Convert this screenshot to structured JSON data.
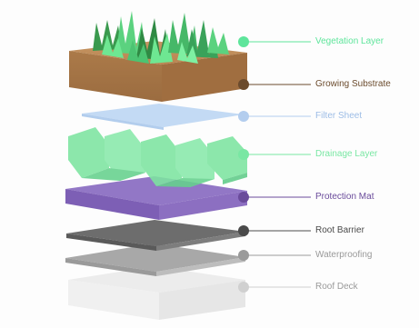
{
  "layers": [
    {
      "key": "vegetation",
      "label": "Vegetation Layer",
      "color": "#5ee59b"
    },
    {
      "key": "substrate",
      "label": "Growing Substrate",
      "color": "#6b4b2d"
    },
    {
      "key": "filter",
      "label": "Filter Sheet",
      "color": "#9dbde6"
    },
    {
      "key": "drainage",
      "label": "Drainage Layer",
      "color": "#79e7a3"
    },
    {
      "key": "protection",
      "label": "Protection Mat",
      "color": "#6a4b9b"
    },
    {
      "key": "root_barrier",
      "label": "Root Barrier",
      "color": "#4a4a4a"
    },
    {
      "key": "waterproofing",
      "label": "Waterproofing",
      "color": "#9a9a9a"
    },
    {
      "key": "roof_deck",
      "label": "Roof Deck",
      "color": "#b8b8b8"
    }
  ]
}
